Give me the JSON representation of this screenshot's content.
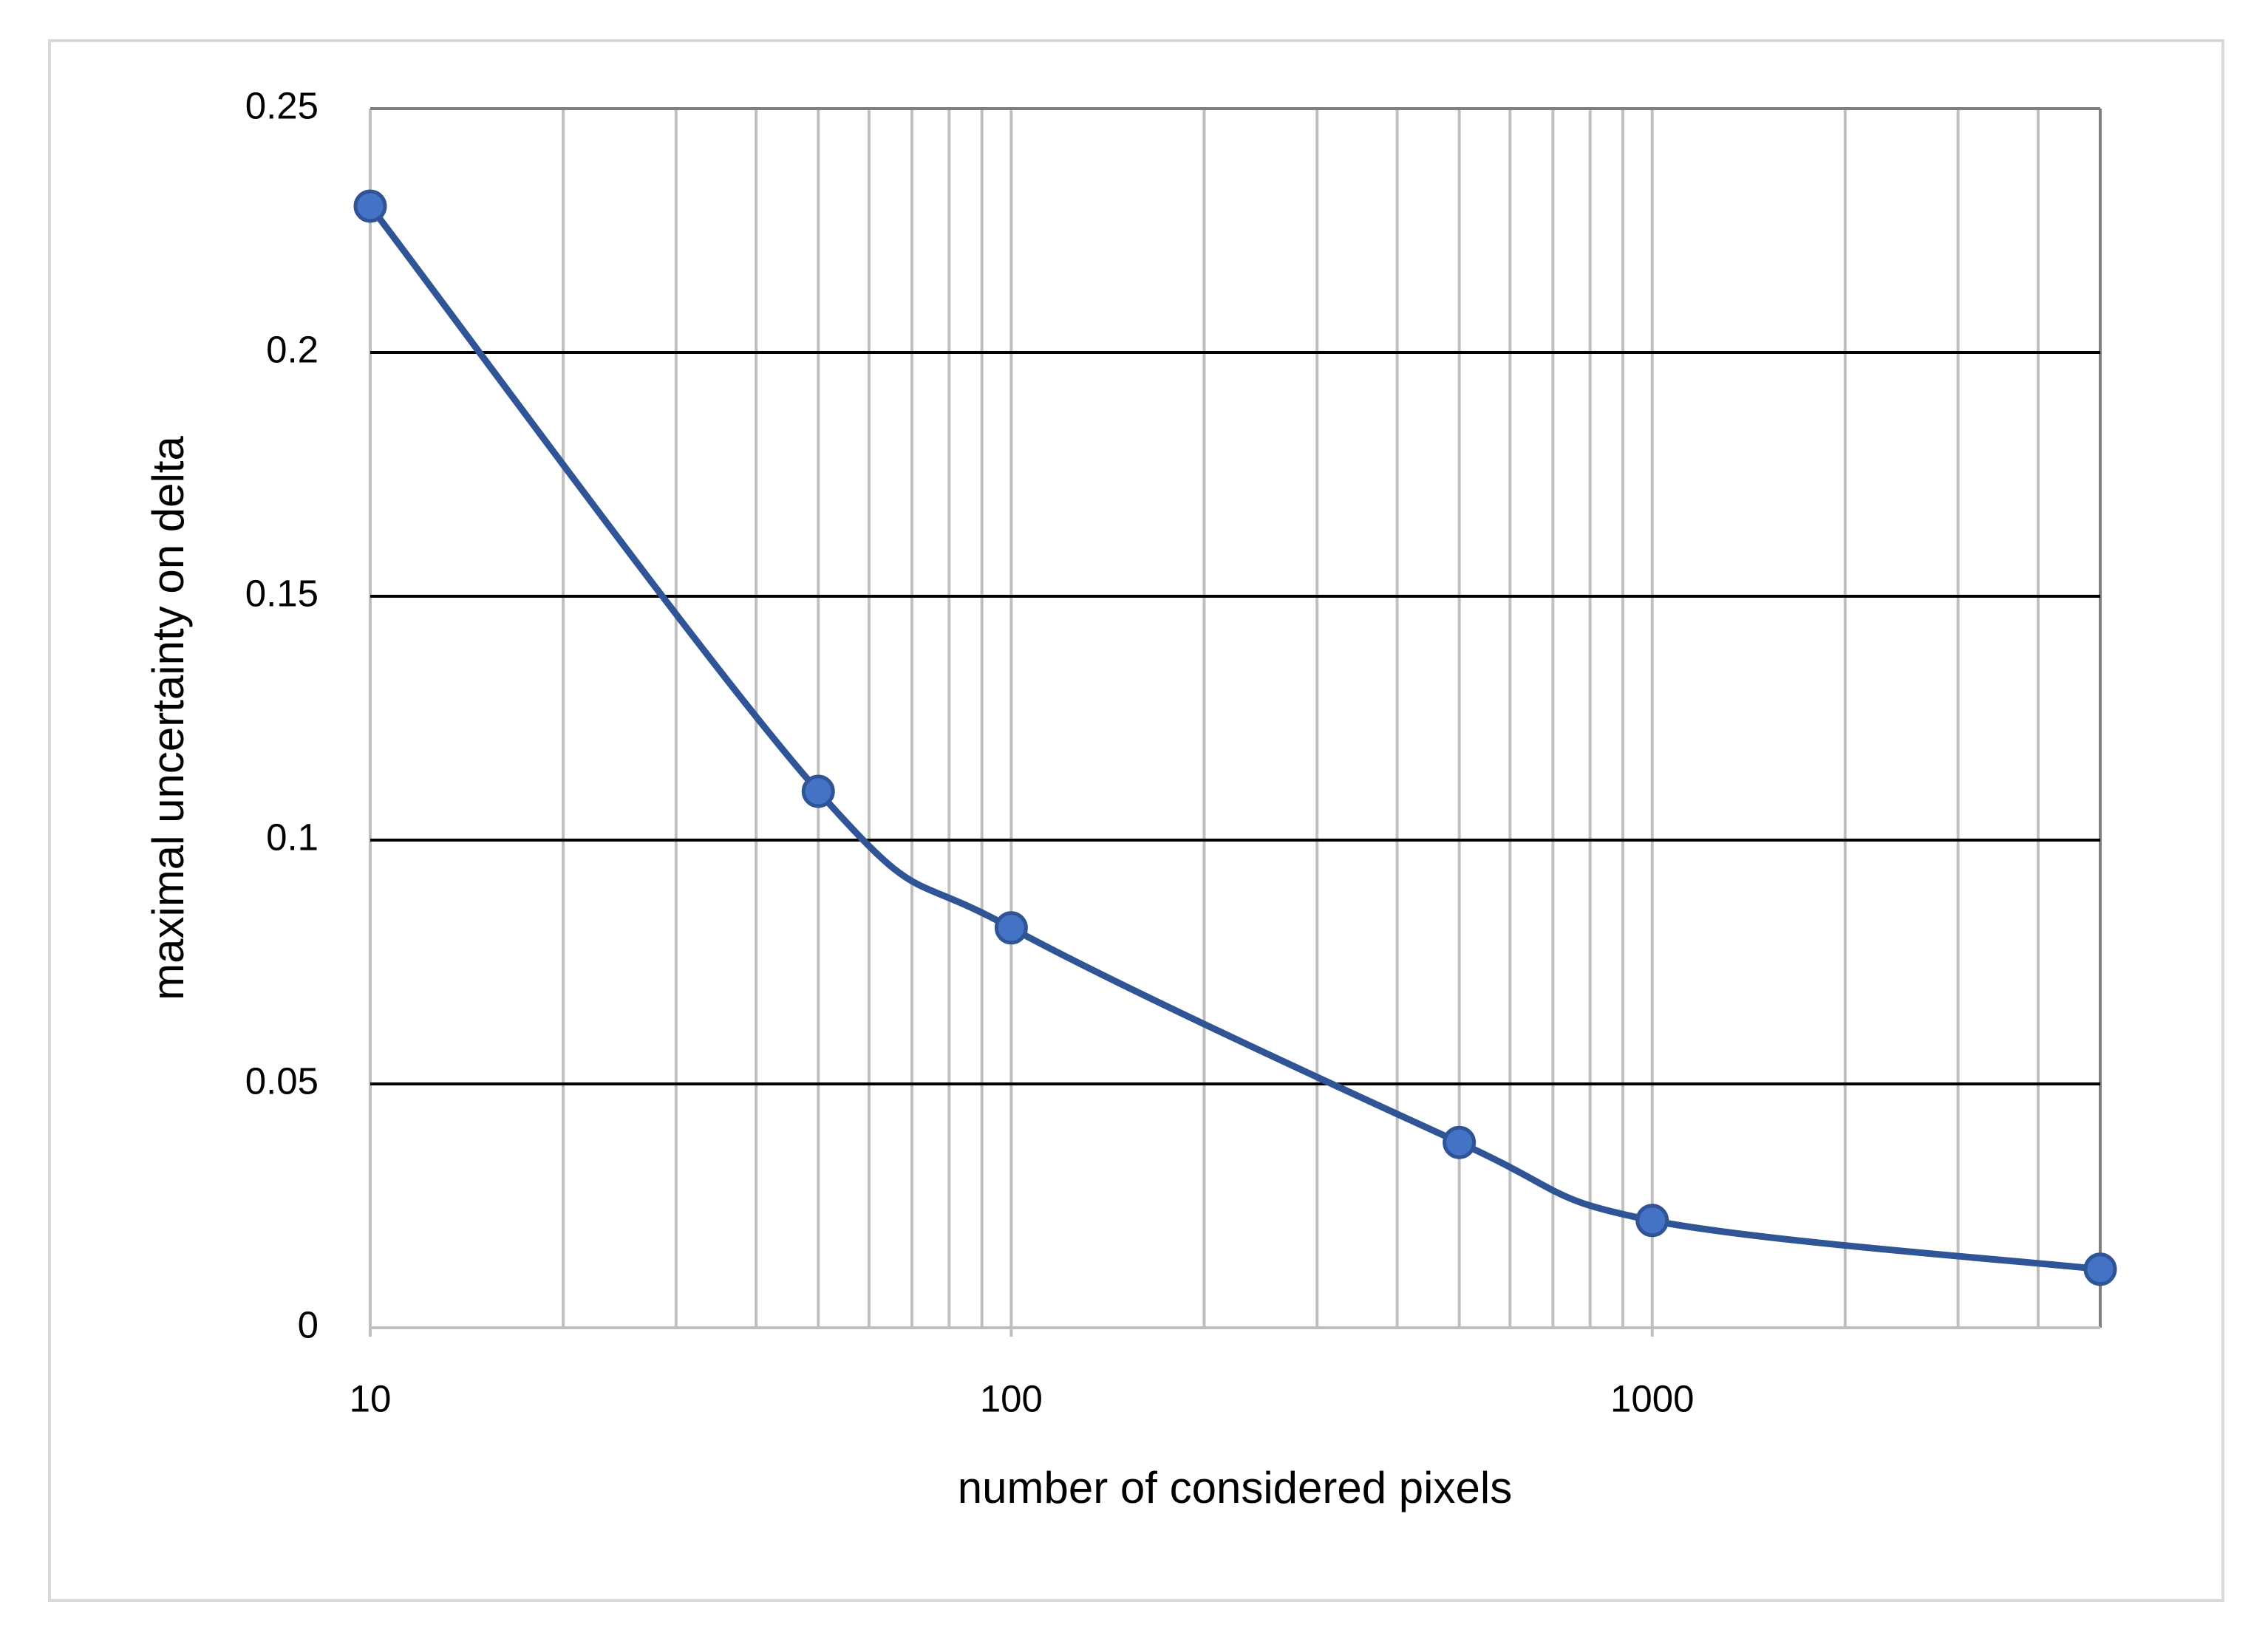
{
  "chart_data": {
    "type": "line",
    "x_label": "number of considered pixels",
    "y_label": "maximal uncertainty on delta",
    "x_scale": "log",
    "x": [
      10,
      50,
      100,
      500,
      1000,
      5000
    ],
    "series": [
      {
        "color": "#2f5597",
        "values": [
          0.23,
          0.11,
          0.082,
          0.038,
          0.022,
          0.012
        ]
      }
    ],
    "xlim": [
      10,
      5000
    ],
    "xticks": [
      10,
      100,
      1000
    ],
    "ylim": [
      0,
      0.25
    ],
    "yticks": [
      0,
      0.05,
      0.1,
      0.15,
      0.2,
      0.25
    ],
    "grid": true,
    "smooth": true
  }
}
